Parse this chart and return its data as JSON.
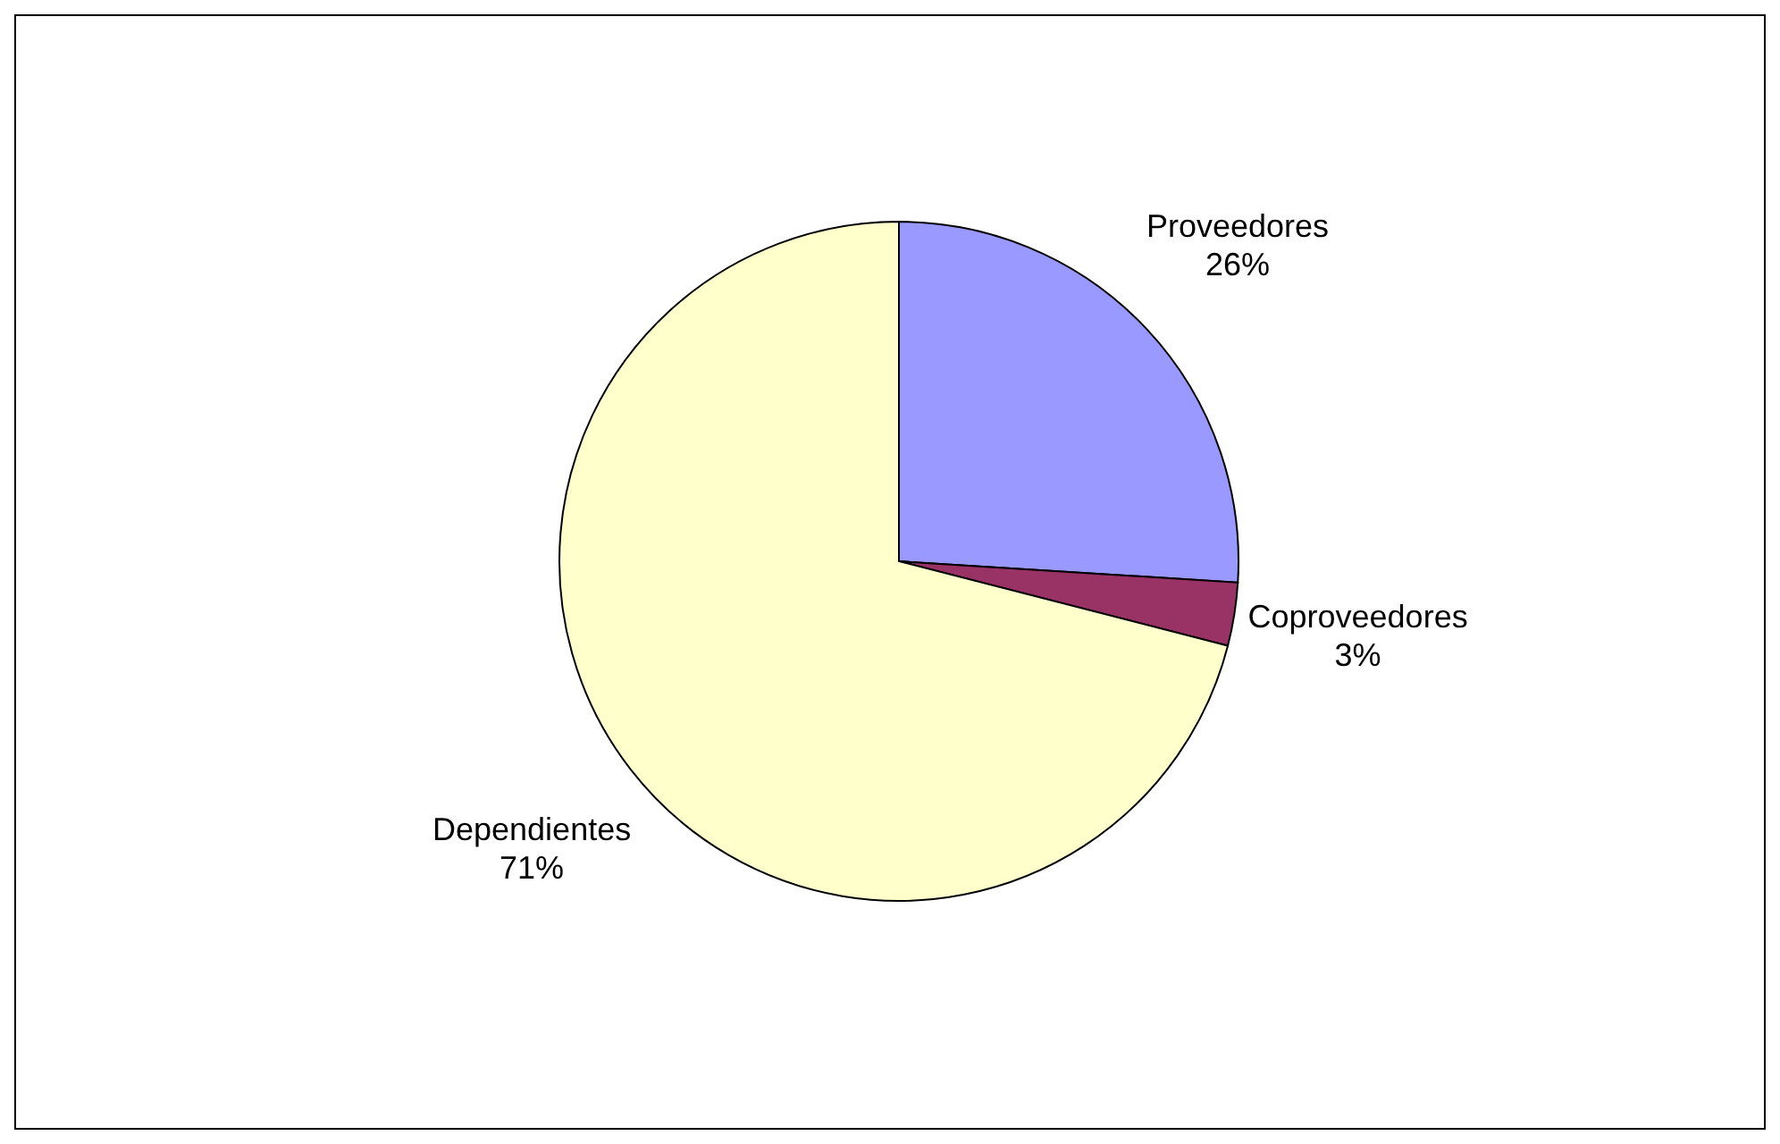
{
  "chart_data": {
    "type": "pie",
    "categories": [
      "Proveedores",
      "Coproveedores",
      "Dependientes"
    ],
    "values": [
      26,
      3,
      71
    ],
    "colors": [
      "#9999ff",
      "#993366",
      "#ffffcc"
    ],
    "value_labels": [
      "26%",
      "3%",
      "71%"
    ]
  }
}
